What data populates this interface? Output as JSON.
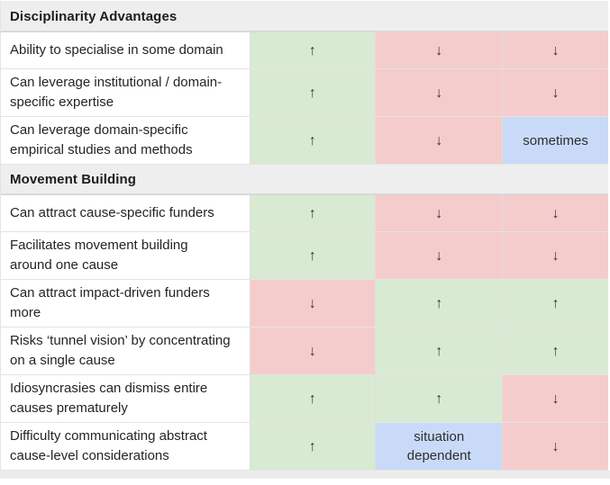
{
  "symbols": {
    "up": "↑",
    "down": "↓"
  },
  "colors": {
    "green": "#d9ead3",
    "red": "#f4cccc",
    "blue": "#c9daf8",
    "header_bg": "#eeeeee"
  },
  "sections": [
    {
      "title": "Disciplinarity Advantages",
      "rows": [
        {
          "label": "Ability to specialise in some domain",
          "cells": [
            {
              "text": "↑",
              "color": "green"
            },
            {
              "text": "↓",
              "color": "red"
            },
            {
              "text": "↓",
              "color": "red"
            }
          ]
        },
        {
          "label": "Can leverage institutional / domain-specific expertise",
          "cells": [
            {
              "text": "↑",
              "color": "green"
            },
            {
              "text": "↓",
              "color": "red"
            },
            {
              "text": "↓",
              "color": "red"
            }
          ]
        },
        {
          "label": "Can leverage domain-specific empirical studies and methods",
          "cells": [
            {
              "text": "↑",
              "color": "green"
            },
            {
              "text": "↓",
              "color": "red"
            },
            {
              "text": "sometimes",
              "color": "blue"
            }
          ]
        }
      ]
    },
    {
      "title": "Movement Building",
      "rows": [
        {
          "label": "Can attract cause-specific funders",
          "cells": [
            {
              "text": "↑",
              "color": "green"
            },
            {
              "text": "↓",
              "color": "red"
            },
            {
              "text": "↓",
              "color": "red"
            }
          ]
        },
        {
          "label": "Facilitates movement building around one cause",
          "cells": [
            {
              "text": "↑",
              "color": "green"
            },
            {
              "text": "↓",
              "color": "red"
            },
            {
              "text": "↓",
              "color": "red"
            }
          ]
        },
        {
          "label": "Can attract impact-driven funders more",
          "cells": [
            {
              "text": "↓",
              "color": "red"
            },
            {
              "text": "↑",
              "color": "green"
            },
            {
              "text": "↑",
              "color": "green"
            }
          ]
        },
        {
          "label": "Risks ‘tunnel vision’ by concentrating on a single cause",
          "cells": [
            {
              "text": "↓",
              "color": "red"
            },
            {
              "text": "↑",
              "color": "green"
            },
            {
              "text": "↑",
              "color": "green"
            }
          ]
        },
        {
          "label": "Idiosyncrasies can dismiss entire causes prematurely",
          "cells": [
            {
              "text": "↑",
              "color": "green"
            },
            {
              "text": "↑",
              "color": "green"
            },
            {
              "text": "↓",
              "color": "red"
            }
          ]
        },
        {
          "label": "Difficulty communicating abstract cause-level considerations",
          "cells": [
            {
              "text": "↑",
              "color": "green"
            },
            {
              "text": "situation dependent",
              "color": "blue"
            },
            {
              "text": "↓",
              "color": "red"
            }
          ]
        }
      ]
    }
  ]
}
